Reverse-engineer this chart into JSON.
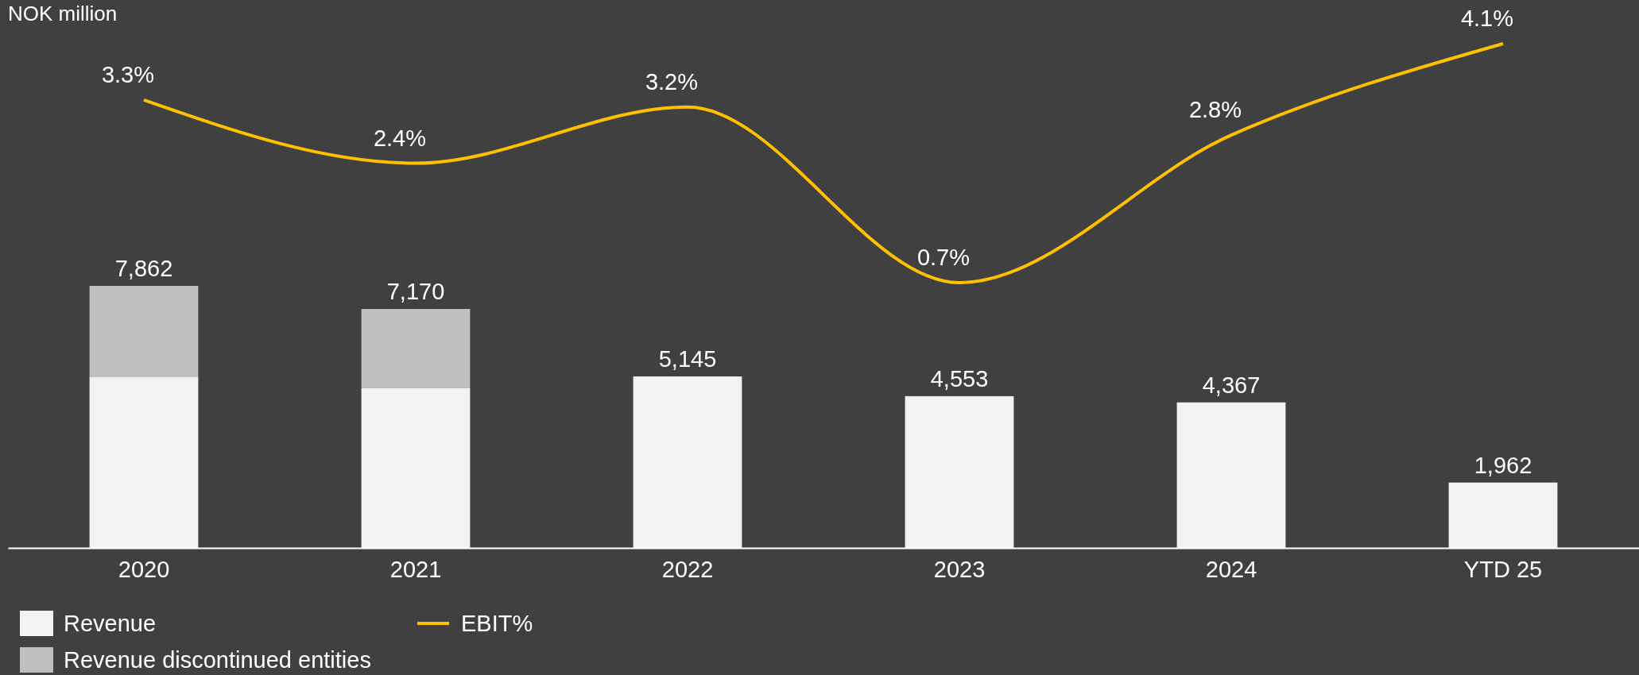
{
  "chart_data": [
    {
      "type": "bar",
      "stacked": true,
      "categories": [
        "2020",
        "2021",
        "2022",
        "2023",
        "2024",
        "YTD 25"
      ],
      "series": [
        {
          "name": "Revenue",
          "color": "#f2f2f2",
          "values": [
            5140,
            4790,
            5145,
            4553,
            4367,
            1962
          ],
          "value_labels": [
            null,
            null,
            "5,145",
            "4,553",
            "4,367",
            "1,962"
          ]
        },
        {
          "name": "Revenue discontinued entities",
          "color": "#bfbfbf",
          "values": [
            2722,
            2380,
            null,
            null,
            null,
            null
          ]
        }
      ],
      "totals": [
        "7,862",
        "7,170",
        null,
        null,
        null,
        null
      ],
      "annotations": [
        "NOK million"
      ],
      "legend": "bottom"
    },
    {
      "type": "line",
      "categories": [
        null,
        null,
        null,
        null,
        null,
        null
      ],
      "series": [
        {
          "name": "EBIT%",
          "color": "#ffc000",
          "values": [
            3.3,
            2.4,
            3.2,
            0.7,
            2.8,
            4.1
          ],
          "value_labels": [
            "3.3%",
            "2.4%",
            "3.2%",
            "0.7%",
            "2.8%",
            "4.1%"
          ]
        }
      ],
      "legend": "bottom"
    }
  ]
}
